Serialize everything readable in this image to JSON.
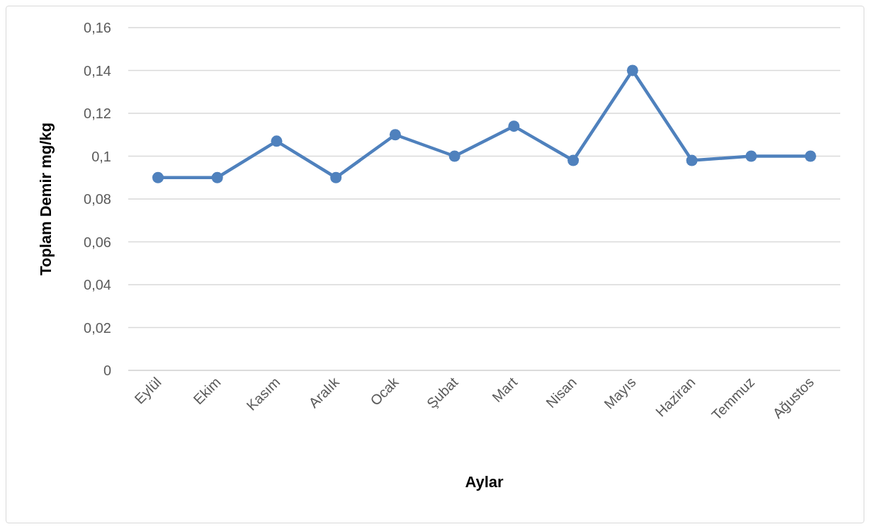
{
  "chart_data": {
    "type": "line",
    "xlabel": "Aylar",
    "ylabel": "Toplam Demir mg/kg",
    "categories": [
      "Eylül",
      "Ekim",
      "Kasım",
      "Aralık",
      "Ocak",
      "Şubat",
      "Mart",
      "Nisan",
      "Mayıs",
      "Haziran",
      "Temmuz",
      "Ağustos"
    ],
    "series": [
      {
        "color": "#4f81bd",
        "values": [
          0.09,
          0.09,
          0.107,
          0.09,
          0.11,
          0.1,
          0.114,
          0.098,
          0.14,
          0.098,
          0.1,
          0.1
        ]
      }
    ],
    "ylim": [
      0,
      0.16
    ],
    "yticks": [
      0,
      {
        "value": 0.02,
        "label": "0,02"
      },
      {
        "value": 0.04,
        "label": "0,04"
      },
      {
        "value": 0.06,
        "label": "0,06"
      },
      {
        "value": 0.08,
        "label": "0,08"
      },
      {
        "value": 0.1,
        "label": "0,1"
      },
      {
        "value": 0.12,
        "label": "0,12"
      },
      {
        "value": 0.14,
        "label": "0,14"
      },
      {
        "value": 0.16,
        "label": "0,16"
      }
    ],
    "grid": "y",
    "marker": "circle",
    "line_style": "solid"
  }
}
